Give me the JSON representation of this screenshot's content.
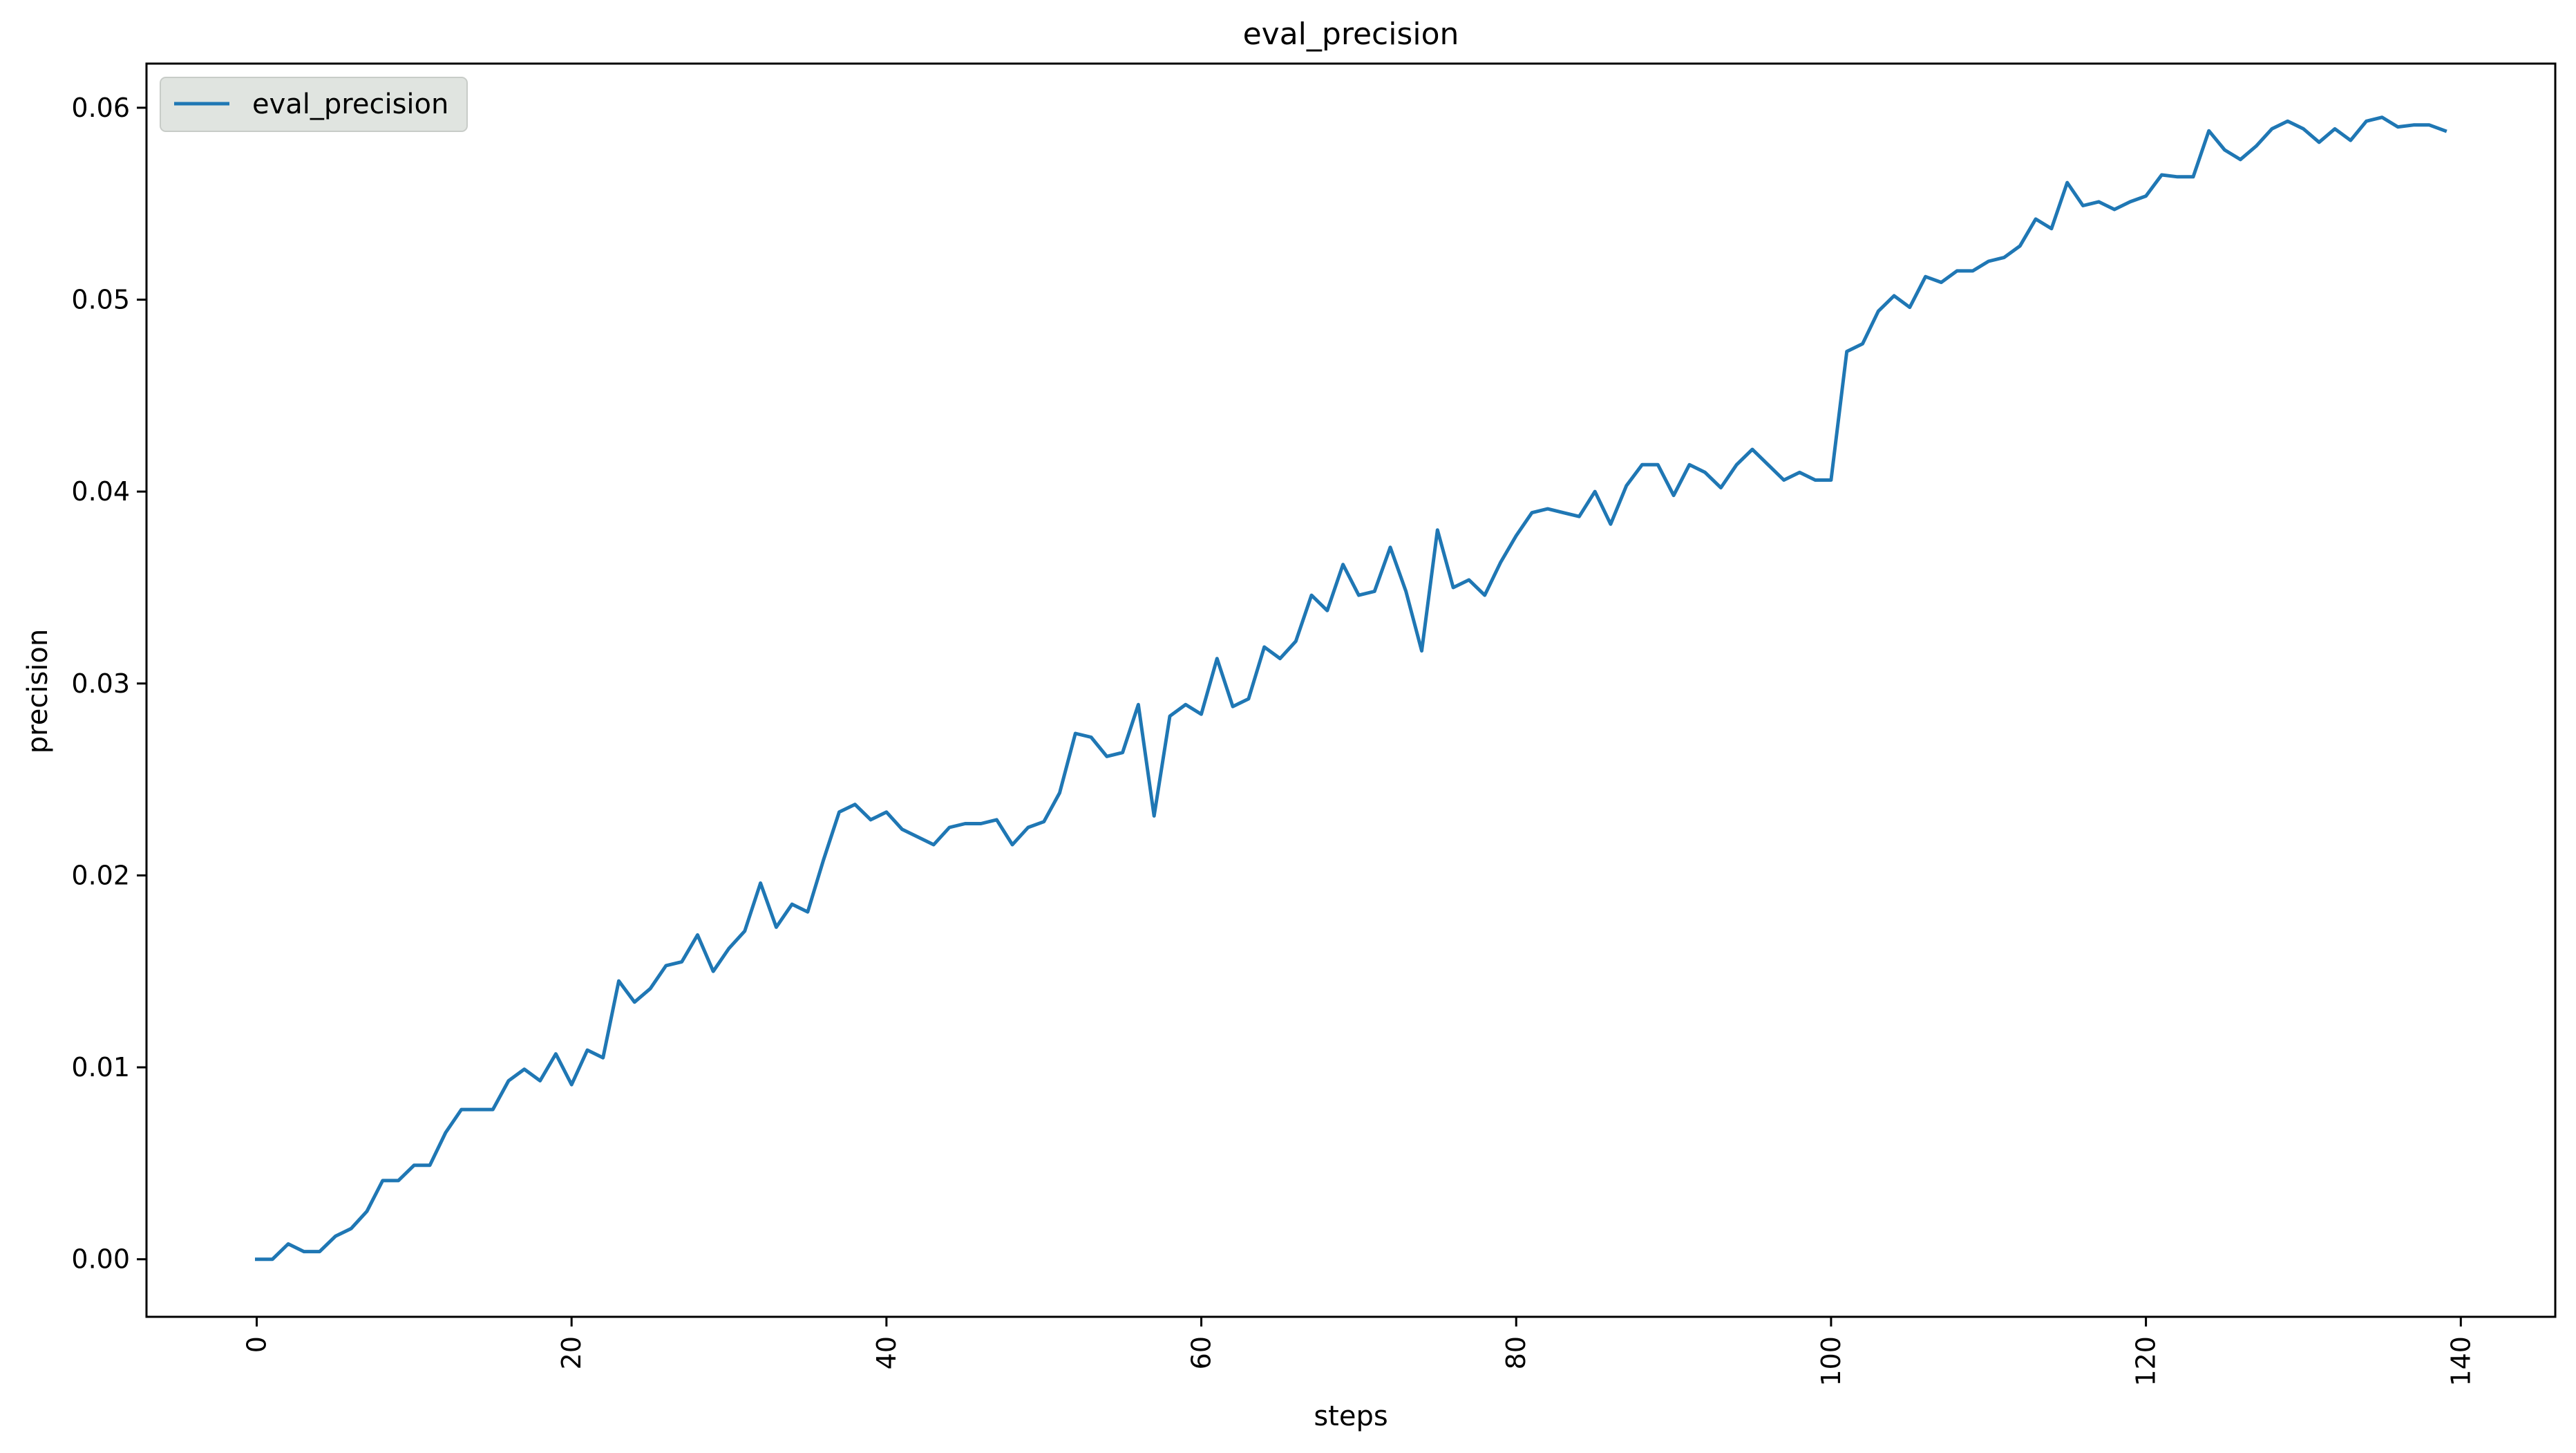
{
  "chart_data": {
    "type": "line",
    "title": "eval_precision",
    "xlabel": "steps",
    "ylabel": "precision",
    "xlim": [
      -7,
      146
    ],
    "ylim": [
      -0.003,
      0.0623
    ],
    "x_ticks": [
      0,
      20,
      40,
      60,
      80,
      100,
      120,
      140
    ],
    "x_tick_labels": [
      "0",
      "20",
      "40",
      "60",
      "80",
      "100",
      "120",
      "140"
    ],
    "y_ticks": [
      0.0,
      0.01,
      0.02,
      0.03,
      0.04,
      0.05,
      0.06
    ],
    "y_tick_labels": [
      "0.00",
      "0.01",
      "0.02",
      "0.03",
      "0.04",
      "0.05",
      "0.06"
    ],
    "grid": false,
    "legend_position": "top-left",
    "series": [
      {
        "name": "eval_precision",
        "color": "#1f77b4",
        "x": [
          0,
          1,
          2,
          3,
          4,
          5,
          6,
          7,
          8,
          9,
          10,
          11,
          12,
          13,
          14,
          15,
          16,
          17,
          18,
          19,
          20,
          21,
          22,
          23,
          24,
          25,
          26,
          27,
          28,
          29,
          30,
          31,
          32,
          33,
          34,
          35,
          36,
          37,
          38,
          39,
          40,
          41,
          42,
          43,
          44,
          45,
          46,
          47,
          48,
          49,
          50,
          51,
          52,
          53,
          54,
          55,
          56,
          57,
          58,
          59,
          60,
          61,
          62,
          63,
          64,
          65,
          66,
          67,
          68,
          69,
          70,
          71,
          72,
          73,
          74,
          75,
          76,
          77,
          78,
          79,
          80,
          81,
          82,
          83,
          84,
          85,
          86,
          87,
          88,
          89,
          90,
          91,
          92,
          93,
          94,
          95,
          96,
          97,
          98,
          99,
          100,
          101,
          102,
          103,
          104,
          105,
          106,
          107,
          108,
          109,
          110,
          111,
          112,
          113,
          114,
          115,
          116,
          117,
          118,
          119,
          120,
          121,
          122,
          123,
          124,
          125,
          126,
          127,
          128,
          129,
          130,
          131,
          132,
          133,
          134,
          135,
          136,
          137,
          138,
          139
        ],
        "y": [
          0.0,
          0.0,
          0.0008,
          0.0004,
          0.0004,
          0.0012,
          0.0016,
          0.0025,
          0.0041,
          0.0041,
          0.0049,
          0.0049,
          0.0066,
          0.0078,
          0.0078,
          0.0078,
          0.0093,
          0.0099,
          0.0093,
          0.0107,
          0.0091,
          0.0109,
          0.0105,
          0.0145,
          0.0134,
          0.0141,
          0.0153,
          0.0155,
          0.0169,
          0.015,
          0.0162,
          0.0171,
          0.0196,
          0.0173,
          0.0185,
          0.0181,
          0.0208,
          0.0233,
          0.0237,
          0.0229,
          0.0233,
          0.0224,
          0.022,
          0.0216,
          0.0225,
          0.0227,
          0.0227,
          0.0229,
          0.0216,
          0.0225,
          0.0228,
          0.0243,
          0.0274,
          0.0272,
          0.0262,
          0.0264,
          0.0289,
          0.0231,
          0.0283,
          0.0289,
          0.0284,
          0.0313,
          0.0288,
          0.0292,
          0.0319,
          0.0313,
          0.0322,
          0.0346,
          0.0338,
          0.0362,
          0.0346,
          0.0348,
          0.0371,
          0.0348,
          0.0317,
          0.038,
          0.035,
          0.0354,
          0.0346,
          0.0363,
          0.0377,
          0.0389,
          0.0391,
          0.0389,
          0.0387,
          0.04,
          0.0383,
          0.0403,
          0.0414,
          0.0414,
          0.0398,
          0.0414,
          0.041,
          0.0402,
          0.0414,
          0.0422,
          0.0414,
          0.0406,
          0.041,
          0.0406,
          0.0406,
          0.0473,
          0.0477,
          0.0494,
          0.0502,
          0.0496,
          0.0512,
          0.0509,
          0.0515,
          0.0515,
          0.052,
          0.0522,
          0.0528,
          0.0542,
          0.0537,
          0.0561,
          0.0549,
          0.0551,
          0.0547,
          0.0551,
          0.0554,
          0.0565,
          0.0564,
          0.0564,
          0.0588,
          0.0578,
          0.0573,
          0.058,
          0.0589,
          0.0593,
          0.0589,
          0.0582,
          0.0589,
          0.0583,
          0.0593,
          0.0595,
          0.059,
          0.0591,
          0.0591,
          0.0588
        ]
      }
    ]
  }
}
